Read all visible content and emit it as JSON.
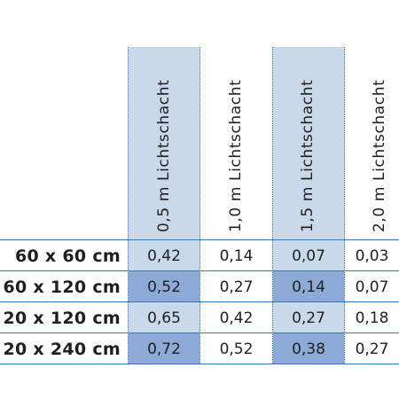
{
  "table": {
    "columns": [
      "0,5 m Lichtschacht",
      "1,0 m Lichtschacht",
      "1,5 m Lichtschacht",
      "2,0 m Lichtschacht"
    ],
    "rows": [
      {
        "label": "60 x 60 cm",
        "values": [
          "0,42",
          "0,14",
          "0,07",
          "0,03"
        ]
      },
      {
        "label": "60 x 120 cm",
        "values": [
          "0,52",
          "0,27",
          "0,14",
          "0,07"
        ]
      },
      {
        "label": "20 x 120 cm",
        "values": [
          "0,65",
          "0,42",
          "0,27",
          "0,18"
        ]
      },
      {
        "label": "20 x 240 cm",
        "values": [
          "0,72",
          "0,52",
          "0,38",
          "0,27"
        ]
      }
    ]
  },
  "colors": {
    "shade": "#c9d9ea",
    "highlight": "#8daad6",
    "rule": "#3d74b3"
  }
}
